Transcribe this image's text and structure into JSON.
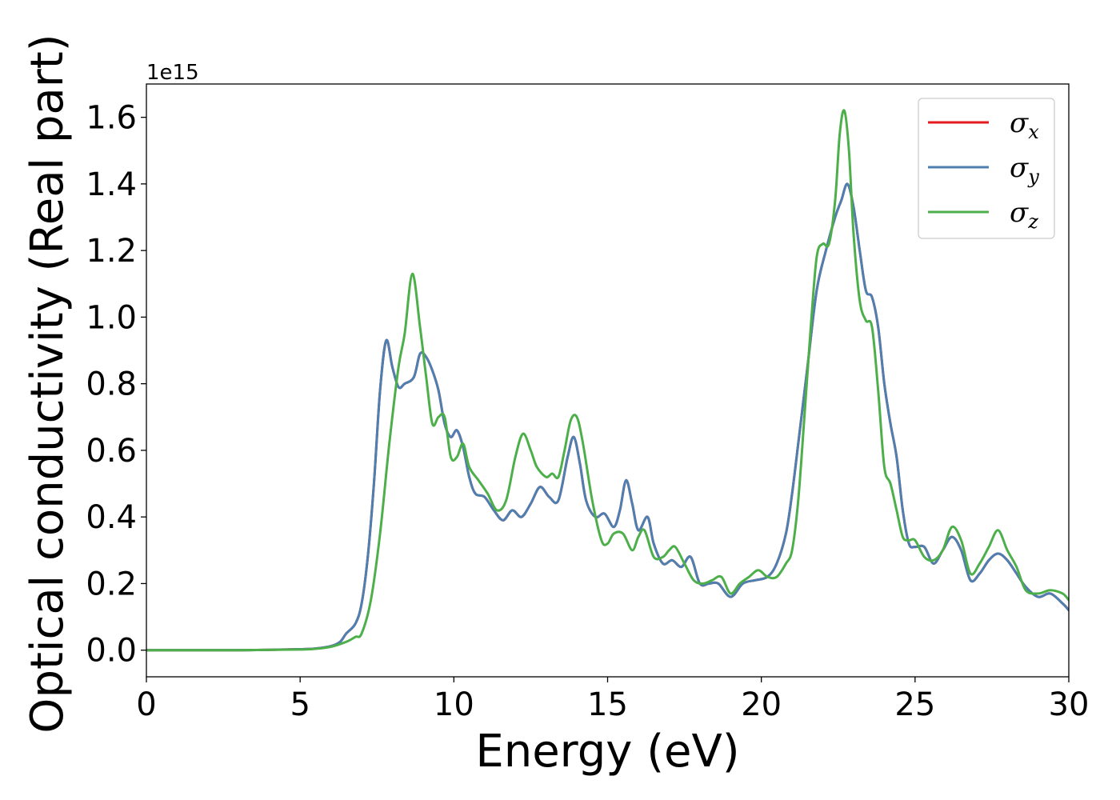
{
  "chart_data": {
    "type": "line",
    "xlabel": "Energy (eV)",
    "ylabel": "Optical conductivity (Real part)",
    "y_offset_text": "1e15",
    "xlim": [
      0,
      30
    ],
    "ylim": [
      -0.08,
      1.7
    ],
    "xticks": [
      0,
      5,
      10,
      15,
      20,
      25,
      30
    ],
    "xtick_labels": [
      "0",
      "5",
      "10",
      "15",
      "20",
      "25",
      "30"
    ],
    "yticks": [
      0.0,
      0.2,
      0.4,
      0.6,
      0.8,
      1.0,
      1.2,
      1.4,
      1.6
    ],
    "ytick_labels": [
      "0.0",
      "0.2",
      "0.4",
      "0.6",
      "0.8",
      "1.0",
      "1.2",
      "1.4",
      "1.6"
    ],
    "grid": false,
    "legend_position": "top-right",
    "series": [
      {
        "name": "σ_x",
        "legend_symbol": "σ",
        "legend_subscript": "x",
        "color": "#e41a1c",
        "x": [
          0,
          3,
          5,
          5.5,
          6,
          6.3,
          6.5,
          6.8,
          7.0,
          7.2,
          7.4,
          7.6,
          7.8,
          8.0,
          8.2,
          8.4,
          8.7,
          8.9,
          9.1,
          9.3,
          9.5,
          9.7,
          9.9,
          10.1,
          10.3,
          10.5,
          10.7,
          11.0,
          11.3,
          11.6,
          11.9,
          12.2,
          12.5,
          12.8,
          13.1,
          13.4,
          13.7,
          13.9,
          14.1,
          14.3,
          14.6,
          14.9,
          15.2,
          15.4,
          15.6,
          15.8,
          16.0,
          16.3,
          16.5,
          16.8,
          17.1,
          17.4,
          17.7,
          18.0,
          18.3,
          18.6,
          19.0,
          19.4,
          19.8,
          20.2,
          20.5,
          20.8,
          21.0,
          21.2,
          21.5,
          21.8,
          22.1,
          22.4,
          22.6,
          22.8,
          23.0,
          23.2,
          23.4,
          23.6,
          23.8,
          24.0,
          24.2,
          24.4,
          24.6,
          24.8,
          25.0,
          25.3,
          25.6,
          25.9,
          26.2,
          26.5,
          26.8,
          27.1,
          27.4,
          27.7,
          28.0,
          28.3,
          28.6,
          29.0,
          29.4,
          29.8,
          30.0
        ],
        "y": [
          0.0,
          0.0,
          0.003,
          0.005,
          0.012,
          0.025,
          0.05,
          0.08,
          0.14,
          0.28,
          0.5,
          0.78,
          0.93,
          0.85,
          0.79,
          0.8,
          0.82,
          0.89,
          0.88,
          0.84,
          0.78,
          0.68,
          0.64,
          0.66,
          0.61,
          0.52,
          0.47,
          0.46,
          0.42,
          0.39,
          0.42,
          0.4,
          0.44,
          0.49,
          0.46,
          0.45,
          0.58,
          0.64,
          0.56,
          0.45,
          0.4,
          0.41,
          0.37,
          0.42,
          0.51,
          0.44,
          0.36,
          0.4,
          0.32,
          0.26,
          0.27,
          0.25,
          0.28,
          0.2,
          0.2,
          0.2,
          0.16,
          0.2,
          0.21,
          0.22,
          0.26,
          0.35,
          0.47,
          0.62,
          0.85,
          1.08,
          1.2,
          1.3,
          1.35,
          1.4,
          1.33,
          1.2,
          1.08,
          1.06,
          0.97,
          0.8,
          0.68,
          0.58,
          0.42,
          0.32,
          0.31,
          0.31,
          0.26,
          0.3,
          0.34,
          0.3,
          0.21,
          0.23,
          0.27,
          0.29,
          0.27,
          0.23,
          0.19,
          0.16,
          0.17,
          0.14,
          0.12
        ]
      },
      {
        "name": "σ_y",
        "legend_symbol": "σ",
        "legend_subscript": "y",
        "color": "#4d7fb0",
        "x": [
          0,
          3,
          5,
          5.5,
          6,
          6.3,
          6.5,
          6.8,
          7.0,
          7.2,
          7.4,
          7.6,
          7.8,
          8.0,
          8.2,
          8.4,
          8.7,
          8.9,
          9.1,
          9.3,
          9.5,
          9.7,
          9.9,
          10.1,
          10.3,
          10.5,
          10.7,
          11.0,
          11.3,
          11.6,
          11.9,
          12.2,
          12.5,
          12.8,
          13.1,
          13.4,
          13.7,
          13.9,
          14.1,
          14.3,
          14.6,
          14.9,
          15.2,
          15.4,
          15.6,
          15.8,
          16.0,
          16.3,
          16.5,
          16.8,
          17.1,
          17.4,
          17.7,
          18.0,
          18.3,
          18.6,
          19.0,
          19.4,
          19.8,
          20.2,
          20.5,
          20.8,
          21.0,
          21.2,
          21.5,
          21.8,
          22.1,
          22.4,
          22.6,
          22.8,
          23.0,
          23.2,
          23.4,
          23.6,
          23.8,
          24.0,
          24.2,
          24.4,
          24.6,
          24.8,
          25.0,
          25.3,
          25.6,
          25.9,
          26.2,
          26.5,
          26.8,
          27.1,
          27.4,
          27.7,
          28.0,
          28.3,
          28.6,
          29.0,
          29.4,
          29.8,
          30.0
        ],
        "y": [
          0.0,
          0.0,
          0.003,
          0.005,
          0.012,
          0.025,
          0.05,
          0.08,
          0.14,
          0.28,
          0.5,
          0.78,
          0.93,
          0.85,
          0.79,
          0.8,
          0.82,
          0.89,
          0.88,
          0.84,
          0.78,
          0.68,
          0.64,
          0.66,
          0.61,
          0.52,
          0.47,
          0.46,
          0.42,
          0.39,
          0.42,
          0.4,
          0.44,
          0.49,
          0.46,
          0.45,
          0.58,
          0.64,
          0.56,
          0.45,
          0.4,
          0.41,
          0.37,
          0.42,
          0.51,
          0.44,
          0.36,
          0.4,
          0.32,
          0.26,
          0.27,
          0.25,
          0.28,
          0.2,
          0.2,
          0.2,
          0.16,
          0.2,
          0.21,
          0.22,
          0.26,
          0.35,
          0.47,
          0.62,
          0.85,
          1.08,
          1.2,
          1.3,
          1.35,
          1.4,
          1.33,
          1.2,
          1.08,
          1.06,
          0.97,
          0.8,
          0.68,
          0.58,
          0.42,
          0.32,
          0.31,
          0.31,
          0.26,
          0.3,
          0.34,
          0.3,
          0.21,
          0.23,
          0.27,
          0.29,
          0.27,
          0.23,
          0.19,
          0.16,
          0.17,
          0.14,
          0.12
        ]
      },
      {
        "name": "σ_z",
        "legend_symbol": "σ",
        "legend_subscript": "z",
        "color": "#4daf4a",
        "x": [
          0,
          3,
          5,
          5.5,
          6,
          6.5,
          6.8,
          7.0,
          7.3,
          7.6,
          7.9,
          8.2,
          8.4,
          8.65,
          8.9,
          9.1,
          9.3,
          9.5,
          9.7,
          9.9,
          10.1,
          10.3,
          10.5,
          10.8,
          11.1,
          11.4,
          11.7,
          12.0,
          12.25,
          12.5,
          12.7,
          13.0,
          13.2,
          13.4,
          13.6,
          13.8,
          14.0,
          14.2,
          14.5,
          14.8,
          15.0,
          15.2,
          15.5,
          15.8,
          16.0,
          16.2,
          16.5,
          16.8,
          17.0,
          17.2,
          17.5,
          17.8,
          18.1,
          18.4,
          18.7,
          19.0,
          19.3,
          19.6,
          19.9,
          20.2,
          20.5,
          20.8,
          21.0,
          21.2,
          21.4,
          21.6,
          21.8,
          22.0,
          22.2,
          22.4,
          22.55,
          22.7,
          22.85,
          23.0,
          23.2,
          23.4,
          23.6,
          23.8,
          24.0,
          24.2,
          24.4,
          24.6,
          24.8,
          25.0,
          25.3,
          25.6,
          25.9,
          26.2,
          26.5,
          26.8,
          27.1,
          27.4,
          27.7,
          28.0,
          28.3,
          28.6,
          29.0,
          29.4,
          29.8,
          30.0
        ],
        "y": [
          0.0,
          0.0,
          0.002,
          0.004,
          0.01,
          0.025,
          0.04,
          0.05,
          0.15,
          0.35,
          0.62,
          0.85,
          0.95,
          1.13,
          0.97,
          0.82,
          0.68,
          0.7,
          0.7,
          0.58,
          0.58,
          0.62,
          0.55,
          0.51,
          0.47,
          0.42,
          0.45,
          0.58,
          0.65,
          0.6,
          0.55,
          0.52,
          0.53,
          0.52,
          0.6,
          0.69,
          0.7,
          0.62,
          0.45,
          0.33,
          0.32,
          0.35,
          0.35,
          0.3,
          0.34,
          0.36,
          0.28,
          0.28,
          0.3,
          0.31,
          0.26,
          0.21,
          0.2,
          0.21,
          0.22,
          0.17,
          0.2,
          0.22,
          0.24,
          0.22,
          0.22,
          0.26,
          0.3,
          0.45,
          0.7,
          0.96,
          1.18,
          1.22,
          1.22,
          1.35,
          1.55,
          1.62,
          1.5,
          1.25,
          1.05,
          0.99,
          0.97,
          0.78,
          0.55,
          0.5,
          0.42,
          0.34,
          0.33,
          0.33,
          0.28,
          0.27,
          0.3,
          0.37,
          0.33,
          0.23,
          0.26,
          0.31,
          0.36,
          0.3,
          0.25,
          0.18,
          0.17,
          0.18,
          0.17,
          0.15
        ]
      }
    ]
  }
}
